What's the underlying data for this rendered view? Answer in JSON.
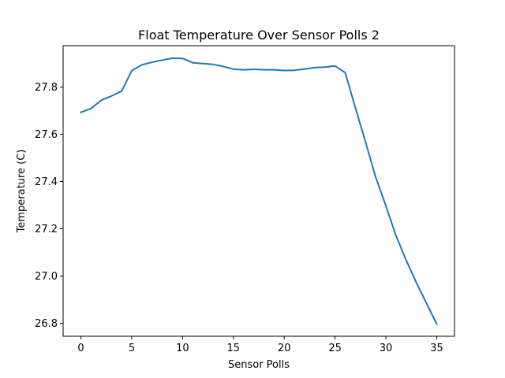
{
  "chart_data": {
    "type": "line",
    "title": "Float Temperature Over Sensor Polls 2",
    "xlabel": "Sensor Polls",
    "ylabel": "Temperature (C)",
    "xlim": [
      -1.75,
      36.75
    ],
    "ylim": [
      26.745,
      27.975
    ],
    "xticks": [
      0,
      5,
      10,
      15,
      20,
      25,
      30,
      35
    ],
    "xtick_labels": [
      "0",
      "5",
      "10",
      "15",
      "20",
      "25",
      "30",
      "35"
    ],
    "yticks": [
      26.8,
      27.0,
      27.2,
      27.4,
      27.6,
      27.8
    ],
    "ytick_labels": [
      "26.8",
      "27.0",
      "27.2",
      "27.4",
      "27.6",
      "27.8"
    ],
    "grid": false,
    "series": [
      {
        "color": "#1f77b4",
        "x": [
          0,
          1,
          2,
          3,
          4,
          5,
          6,
          7,
          8,
          9,
          10,
          11,
          12,
          13,
          14,
          15,
          16,
          17,
          18,
          19,
          20,
          21,
          22,
          23,
          24,
          25,
          26,
          27,
          28,
          29,
          30,
          31,
          32,
          33,
          34,
          35
        ],
        "y": [
          27.693,
          27.709,
          27.744,
          27.762,
          27.782,
          27.869,
          27.894,
          27.905,
          27.914,
          27.922,
          27.921,
          27.903,
          27.899,
          27.896,
          27.887,
          27.876,
          27.873,
          27.875,
          27.873,
          27.873,
          27.87,
          27.871,
          27.876,
          27.882,
          27.884,
          27.889,
          27.861,
          27.712,
          27.567,
          27.418,
          27.297,
          27.17,
          27.066,
          26.972,
          26.884,
          26.797
        ]
      }
    ]
  }
}
